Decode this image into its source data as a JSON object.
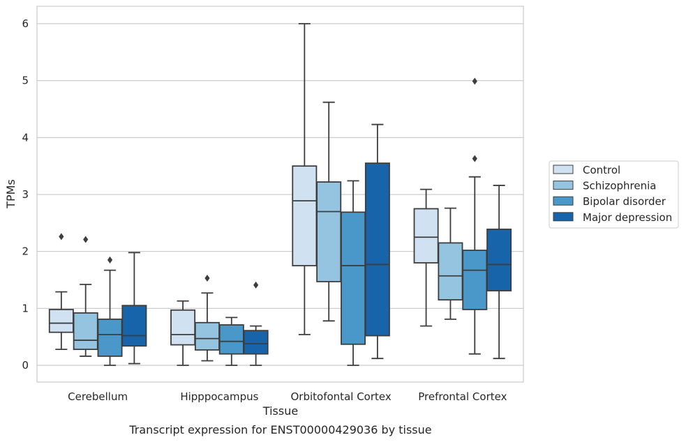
{
  "caption": "Transcript expression for ENST00000429036 by tissue",
  "chart_data": {
    "type": "box",
    "xlabel": "Tissue",
    "ylabel": "TPMs",
    "ylim": [
      -0.28,
      6.3
    ],
    "yticks": [
      0,
      1,
      2,
      3,
      4,
      5,
      6
    ],
    "grid": "horizontal",
    "legend_position": "right-outside",
    "categories": [
      "Cerebellum",
      "Hipppocampus",
      "Orbitofontal Cortex",
      "Prefrontal Cortex"
    ],
    "series": [
      {
        "name": "Control",
        "color": "#d0e1f2",
        "boxes": [
          {
            "whisker_low": 0.28,
            "q1": 0.58,
            "median": 0.74,
            "q3": 0.98,
            "whisker_high": 1.29,
            "outliers": [
              2.26
            ]
          },
          {
            "whisker_low": 0.0,
            "q1": 0.36,
            "median": 0.54,
            "q3": 0.97,
            "whisker_high": 1.13,
            "outliers": []
          },
          {
            "whisker_low": 0.54,
            "q1": 1.75,
            "median": 2.89,
            "q3": 3.5,
            "whisker_high": 6.0,
            "outliers": []
          },
          {
            "whisker_low": 0.69,
            "q1": 1.8,
            "median": 2.25,
            "q3": 2.75,
            "whisker_high": 3.09,
            "outliers": []
          }
        ]
      },
      {
        "name": "Schizophrenia",
        "color": "#94c4df",
        "boxes": [
          {
            "whisker_low": 0.16,
            "q1": 0.28,
            "median": 0.44,
            "q3": 0.92,
            "whisker_high": 1.42,
            "outliers": [
              2.21
            ]
          },
          {
            "whisker_low": 0.08,
            "q1": 0.27,
            "median": 0.47,
            "q3": 0.75,
            "whisker_high": 1.27,
            "outliers": [
              1.53
            ]
          },
          {
            "whisker_low": 0.78,
            "q1": 1.47,
            "median": 2.7,
            "q3": 3.22,
            "whisker_high": 4.62,
            "outliers": []
          },
          {
            "whisker_low": 0.81,
            "q1": 1.15,
            "median": 1.57,
            "q3": 2.15,
            "whisker_high": 2.76,
            "outliers": []
          }
        ]
      },
      {
        "name": "Bipolar disorder",
        "color": "#4a98c9",
        "boxes": [
          {
            "whisker_low": 0.0,
            "q1": 0.16,
            "median": 0.54,
            "q3": 0.81,
            "whisker_high": 1.67,
            "outliers": [
              1.85
            ]
          },
          {
            "whisker_low": 0.0,
            "q1": 0.2,
            "median": 0.42,
            "q3": 0.71,
            "whisker_high": 0.84,
            "outliers": []
          },
          {
            "whisker_low": 0.0,
            "q1": 0.37,
            "median": 1.75,
            "q3": 2.69,
            "whisker_high": 3.24,
            "outliers": []
          },
          {
            "whisker_low": 0.2,
            "q1": 0.98,
            "median": 1.67,
            "q3": 2.02,
            "whisker_high": 3.31,
            "outliers": [
              3.63,
              4.99
            ]
          }
        ]
      },
      {
        "name": "Major depression",
        "color": "#1764ab",
        "boxes": [
          {
            "whisker_low": 0.03,
            "q1": 0.34,
            "median": 0.52,
            "q3": 1.05,
            "whisker_high": 1.98,
            "outliers": []
          },
          {
            "whisker_low": 0.0,
            "q1": 0.2,
            "median": 0.38,
            "q3": 0.61,
            "whisker_high": 0.69,
            "outliers": [
              1.41
            ]
          },
          {
            "whisker_low": 0.12,
            "q1": 0.52,
            "median": 1.77,
            "q3": 3.55,
            "whisker_high": 4.23,
            "outliers": []
          },
          {
            "whisker_low": 0.12,
            "q1": 1.31,
            "median": 1.77,
            "q3": 2.39,
            "whisker_high": 3.16,
            "outliers": []
          }
        ]
      }
    ]
  }
}
